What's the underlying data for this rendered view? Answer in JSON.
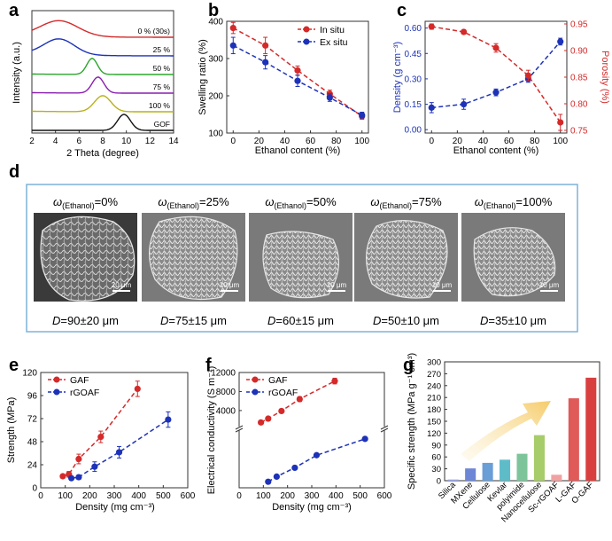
{
  "colors": {
    "red": "#d42a2a",
    "blue": "#1d32b8",
    "frame_blue": "#7fb2d8",
    "sem_bg": "#6a6a6a"
  },
  "panels": {
    "a": {
      "letter": "a"
    },
    "b": {
      "letter": "b"
    },
    "c": {
      "letter": "c"
    },
    "d": {
      "letter": "d"
    },
    "e": {
      "letter": "e"
    },
    "f": {
      "letter": "f"
    },
    "g": {
      "letter": "g"
    }
  },
  "sem_panel": {
    "images": [
      {
        "omega": "ω",
        "subscript": "(Ethanol)",
        "value": "=0%",
        "scale": "20 μm",
        "diameter_label": "D",
        "diameter": "=90±20 μm"
      },
      {
        "omega": "ω",
        "subscript": "(Ethanol)",
        "value": "=25%",
        "scale": "10 μm",
        "diameter_label": "D",
        "diameter": "=75±15 μm"
      },
      {
        "omega": "ω",
        "subscript": "(Ethanol)",
        "value": "=50%",
        "scale": "10 μm",
        "diameter_label": "D",
        "diameter": "=60±15 μm"
      },
      {
        "omega": "ω",
        "subscript": "(Ethanol)",
        "value": "=75%",
        "scale": "10 μm",
        "diameter_label": "D",
        "diameter": "=50±10 μm"
      },
      {
        "omega": "ω",
        "subscript": "(Ethanol)",
        "value": "=100%",
        "scale": "10 μm",
        "diameter_label": "D",
        "diameter": "=35±10 μm"
      }
    ]
  },
  "chart_data": [
    {
      "id": "a",
      "type": "line",
      "title": "",
      "xlabel": "2 Theta (degree)",
      "ylabel": "Intensity (a.u.)",
      "xlim": [
        2,
        14
      ],
      "xticks": [
        "2",
        "4",
        "6",
        "8",
        "10",
        "12",
        "14"
      ],
      "series": [
        {
          "name": "0 % (30s)",
          "color": "#d42a2a",
          "peak": 4.3,
          "width": 1.6,
          "tail": 0.15
        },
        {
          "name": "25 %",
          "color": "#1d32b8",
          "peak": 4.3,
          "width": 1.3,
          "tail": 0.25
        },
        {
          "name": "50 %",
          "color": "#2aa52a",
          "peak": 7.1,
          "width": 0.45,
          "tail": 0.05
        },
        {
          "name": "75 %",
          "color": "#8b1fb0",
          "peak": 7.6,
          "width": 0.5,
          "tail": 0.05
        },
        {
          "name": "100 %",
          "color": "#b9b018",
          "peak": 8.0,
          "width": 0.7,
          "tail": 0.05
        },
        {
          "name": "GOF",
          "color": "#111111",
          "peak": 9.8,
          "width": 0.55,
          "tail": 0.0
        }
      ]
    },
    {
      "id": "b",
      "type": "line",
      "title": "",
      "xlabel": "Ethanol content (%)",
      "ylabel": "Swelling ratio (%)",
      "xlim": [
        -5,
        105
      ],
      "ylim": [
        100,
        400
      ],
      "xticks": [
        "0",
        "20",
        "40",
        "60",
        "80",
        "100"
      ],
      "yticks": [
        "100",
        "200",
        "300",
        "400"
      ],
      "series": [
        {
          "name": "In situ",
          "color": "#d42a2a",
          "x": [
            0,
            25,
            50,
            75,
            100
          ],
          "y": [
            382,
            335,
            268,
            205,
            145
          ],
          "err": [
            15,
            22,
            12,
            10,
            8
          ]
        },
        {
          "name": "Ex situ",
          "color": "#1d32b8",
          "x": [
            0,
            25,
            50,
            75,
            100
          ],
          "y": [
            335,
            290,
            240,
            195,
            148
          ],
          "err": [
            22,
            18,
            15,
            10,
            8
          ]
        }
      ]
    },
    {
      "id": "c",
      "type": "line",
      "title": "",
      "xlabel": "Ethanol content (%)",
      "ylabel": "Density (g cm⁻³)",
      "ylabel_right": "Porosity (%)",
      "xlim": [
        -5,
        105
      ],
      "ylim": [
        -0.02,
        0.64
      ],
      "ylim_right": [
        0.745,
        0.955
      ],
      "xticks": [
        "0",
        "20",
        "40",
        "60",
        "80",
        "100"
      ],
      "yticks": [
        "0.00",
        "0.15",
        "0.30",
        "0.45",
        "0.60"
      ],
      "yticks_right": [
        "0.75",
        "0.80",
        "0.85",
        "0.90",
        "0.95"
      ],
      "series": [
        {
          "name": "Density",
          "color": "#1d32b8",
          "axis": "left",
          "x": [
            0,
            25,
            50,
            75,
            100
          ],
          "y": [
            0.13,
            0.15,
            0.22,
            0.3,
            0.52
          ],
          "err": [
            0.03,
            0.03,
            0.02,
            0.02,
            0.02
          ]
        },
        {
          "name": "Porosity",
          "color": "#d42a2a",
          "axis": "right",
          "x": [
            0,
            25,
            50,
            75,
            100
          ],
          "y": [
            0.945,
            0.935,
            0.905,
            0.853,
            0.765
          ],
          "err": [
            0.005,
            0.004,
            0.008,
            0.01,
            0.015
          ]
        }
      ]
    },
    {
      "id": "e",
      "type": "scatter",
      "title": "",
      "xlabel": "Density (mg cm⁻³)",
      "ylabel": "Strength (MPa)",
      "xlim": [
        0,
        600
      ],
      "ylim": [
        0,
        120
      ],
      "xticks": [
        "0",
        "100",
        "200",
        "300",
        "400",
        "500",
        "600"
      ],
      "yticks": [
        "0",
        "24",
        "48",
        "72",
        "96",
        "120"
      ],
      "series": [
        {
          "name": "GAF",
          "color": "#d42a2a",
          "x": [
            90,
            115,
            155,
            245,
            395
          ],
          "y": [
            12,
            14,
            30,
            53,
            103
          ],
          "err": [
            2,
            3,
            5,
            6,
            8
          ]
        },
        {
          "name": "rGOAF",
          "color": "#1d32b8",
          "x": [
            125,
            155,
            220,
            320,
            520
          ],
          "y": [
            10,
            11,
            22,
            37,
            71
          ],
          "err": [
            1,
            2,
            5,
            6,
            8
          ]
        }
      ]
    },
    {
      "id": "f",
      "type": "scatter",
      "title": "",
      "xlabel": "Density (mg cm⁻³)",
      "ylabel": "Electrical conductivity (S m⁻¹)",
      "xlim": [
        0,
        600
      ],
      "ylim_upper": [
        1000,
        12000
      ],
      "ylim_lower": [
        0,
        1200
      ],
      "xticks": [
        "0",
        "100",
        "200",
        "300",
        "400",
        "500",
        "600"
      ],
      "yticks_upper": [
        "4000",
        "8000",
        "12000"
      ],
      "series": [
        {
          "name": "GAF",
          "color": "#d42a2a",
          "x": [
            90,
            120,
            175,
            250,
            395
          ],
          "y": [
            1500,
            2300,
            3900,
            6400,
            10200
          ],
          "err": [
            300,
            300,
            400,
            500,
            600
          ]
        },
        {
          "name": "rGOAF",
          "color": "#1d32b8",
          "x": [
            120,
            155,
            230,
            320,
            520
          ],
          "y": [
            130,
            240,
            430,
            700,
            1050
          ],
          "err": [
            20,
            20,
            30,
            40,
            40
          ]
        }
      ]
    },
    {
      "id": "g",
      "type": "bar",
      "title": "",
      "xlabel": "",
      "ylabel": "Specific strength (MPa g⁻¹ cm³)",
      "ylim": [
        0,
        300
      ],
      "yticks": [
        "0",
        "30",
        "60",
        "90",
        "120",
        "150",
        "180",
        "210",
        "240",
        "270",
        "300"
      ],
      "categories": [
        "Silica",
        "MXene",
        "Cellulose",
        "Kevlar",
        "polyimide",
        "Nanocellulose",
        "Sc-rGOAF",
        "L-GAF",
        "O-GAF"
      ],
      "values": [
        3,
        31,
        45,
        53,
        68,
        115,
        15,
        208,
        260
      ],
      "colors": [
        "#9aa3e8",
        "#6d86d6",
        "#6a9ed6",
        "#5ebcc8",
        "#7ec49a",
        "#a7cc6a",
        "#f2a1a1",
        "#e05a5a",
        "#d84040"
      ]
    }
  ]
}
